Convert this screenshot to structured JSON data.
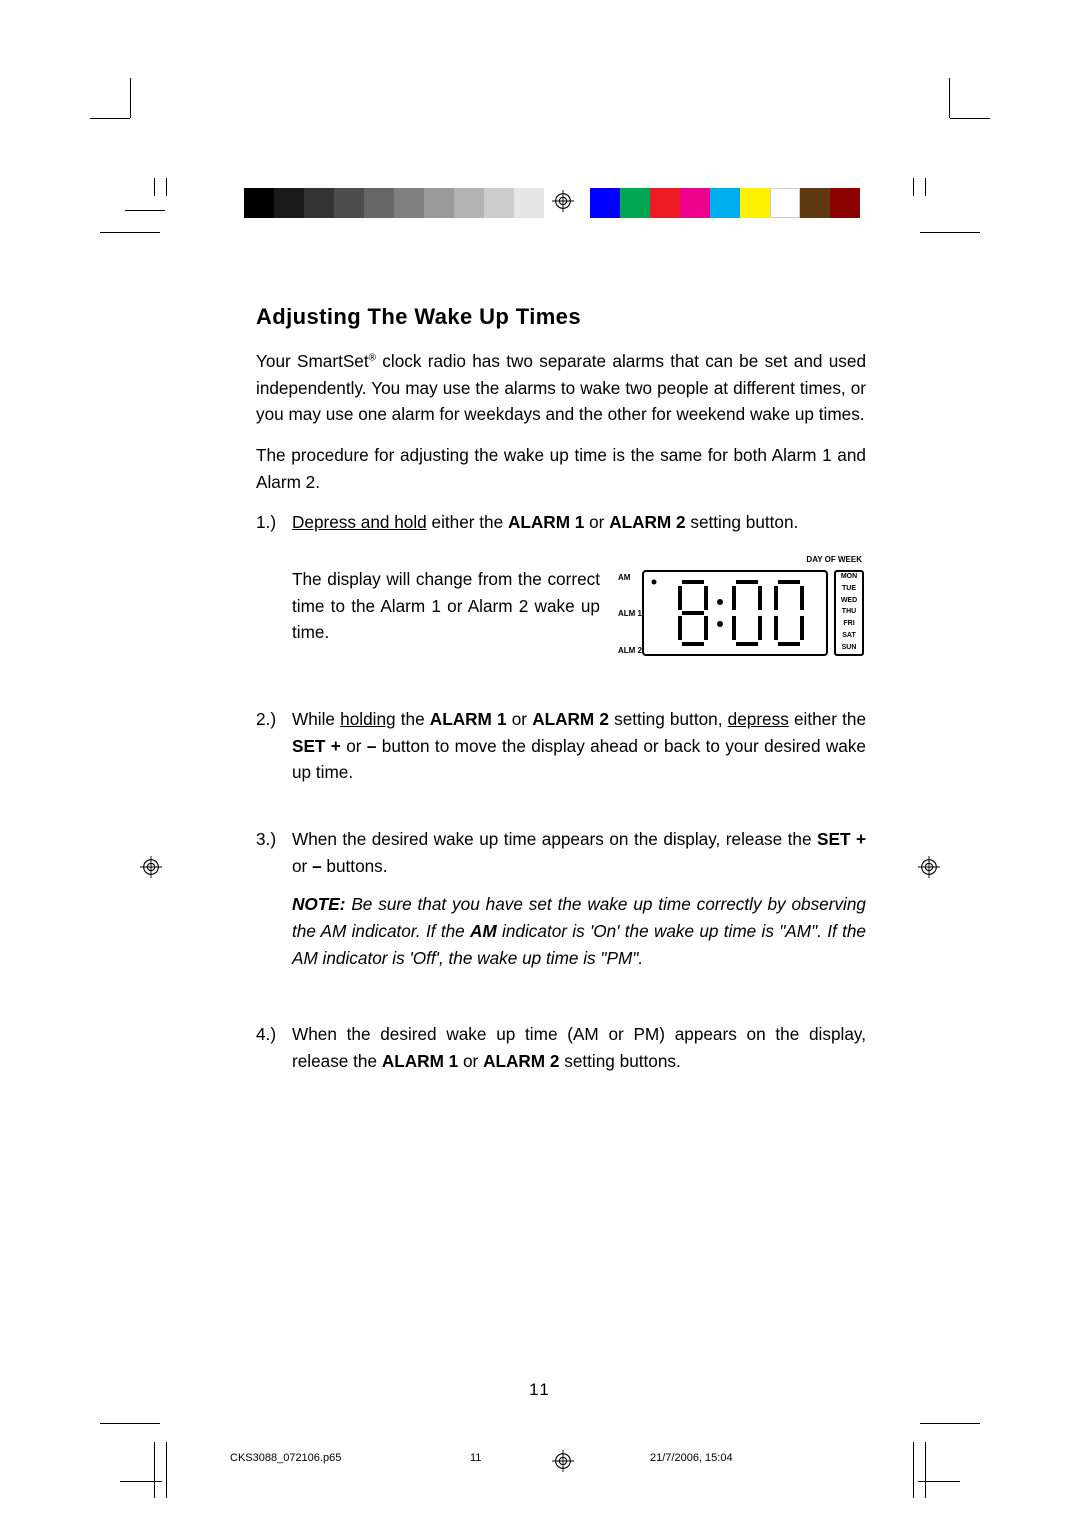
{
  "colors": {
    "text": "#000000",
    "background": "#ffffff"
  },
  "colorbar_left": [
    "#000000",
    "#1a1a1a",
    "#333333",
    "#4d4d4d",
    "#666666",
    "#808080",
    "#999999",
    "#b3b3b3",
    "#cccccc",
    "#e6e6e6"
  ],
  "colorbar_right": [
    "#0000ff",
    "#00a651",
    "#ed1c24",
    "#ec008c",
    "#00aeef",
    "#fff200",
    "#ffffff",
    "#603913",
    "#8b0000"
  ],
  "title": "Adjusting The Wake Up Times",
  "intro1_a": "Your SmartSet",
  "intro1_reg": "®",
  "intro1_b": " clock radio has two separate alarms that can be set and used independently. You may use the alarms to wake two people at different times, or you may use one alarm for weekdays and the other for weekend wake up times.",
  "intro2": "The procedure for adjusting the wake up time is the same for both Alarm 1 and Alarm 2.",
  "step1": {
    "num": "1.)",
    "a": "Depress and hold",
    "b": " either the ",
    "c": "ALARM 1",
    "d": " or ",
    "e": "ALARM 2",
    "f": " setting button.",
    "sub": "The display will change from the correct time to the Alarm 1 or Alarm 2 wake up time."
  },
  "lcd": {
    "am": "AM",
    "alm1": "ALM 1",
    "alm2": "ALM 2",
    "dow_label": "DAY OF WEEK",
    "days": [
      "MON",
      "TUE",
      "WED",
      "THU",
      "FRI",
      "SAT",
      "SUN"
    ],
    "time_display": "8:00"
  },
  "step2": {
    "num": "2.)",
    "a": "While ",
    "b": "holding",
    "c": " the ",
    "d": "ALARM 1",
    "e": " or ",
    "f": "ALARM 2",
    "g": " setting button, ",
    "h": "depress",
    "i": " either the ",
    "j": "SET +",
    "k": " or ",
    "l": "–",
    "m": " button to move the display ahead or back to your desired wake up time."
  },
  "step3": {
    "num": "3.)",
    "a": "When the desired wake up time appears on the display, release the ",
    "b": "SET +",
    "c": " or ",
    "d": "–",
    "e": " buttons.",
    "note_label": "NOTE:",
    "note_a": " Be sure that you have set the wake up time correctly by observing the AM indicator. If the ",
    "note_b": "AM",
    "note_c": " indicator is 'On' the wake up time is \"AM\". If the AM indicator is 'Off', the wake up time is \"PM\"."
  },
  "step4": {
    "num": "4.)",
    "a": "When the desired wake up time (AM or PM) appears on the display, release the ",
    "b": "ALARM 1",
    "c": " or ",
    "d": "ALARM 2",
    "e": " setting buttons."
  },
  "page_number": "11",
  "footer": {
    "file": "CKS3088_072106.p65",
    "page": "11",
    "datetime": "21/7/2006, 15:04"
  }
}
